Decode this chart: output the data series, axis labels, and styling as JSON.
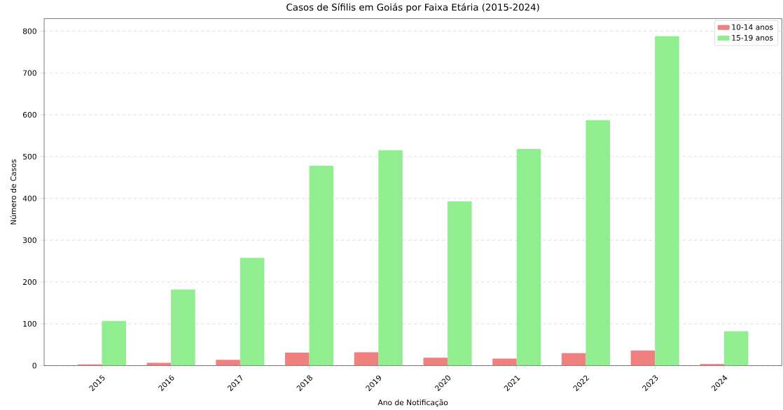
{
  "chart_data": {
    "type": "bar",
    "title": "Casos de Sífilis em Goiás por Faixa Etária (2015-2024)",
    "xlabel": "Ano de Notificação",
    "ylabel": "Número de Casos",
    "categories": [
      "2015",
      "2016",
      "2017",
      "2018",
      "2019",
      "2020",
      "2021",
      "2022",
      "2023",
      "2024"
    ],
    "series": [
      {
        "name": "10-14 anos",
        "color": "#f08080",
        "values": [
          3,
          7,
          14,
          31,
          32,
          19,
          17,
          30,
          36,
          4
        ]
      },
      {
        "name": "15-19 anos",
        "color": "#90ee90",
        "values": [
          107,
          182,
          258,
          478,
          515,
          393,
          518,
          587,
          788,
          82
        ]
      }
    ],
    "ylim": [
      0,
      830
    ],
    "yticks": [
      0,
      100,
      200,
      300,
      400,
      500,
      600,
      700,
      800
    ],
    "grid": "y",
    "legend": "top right"
  }
}
